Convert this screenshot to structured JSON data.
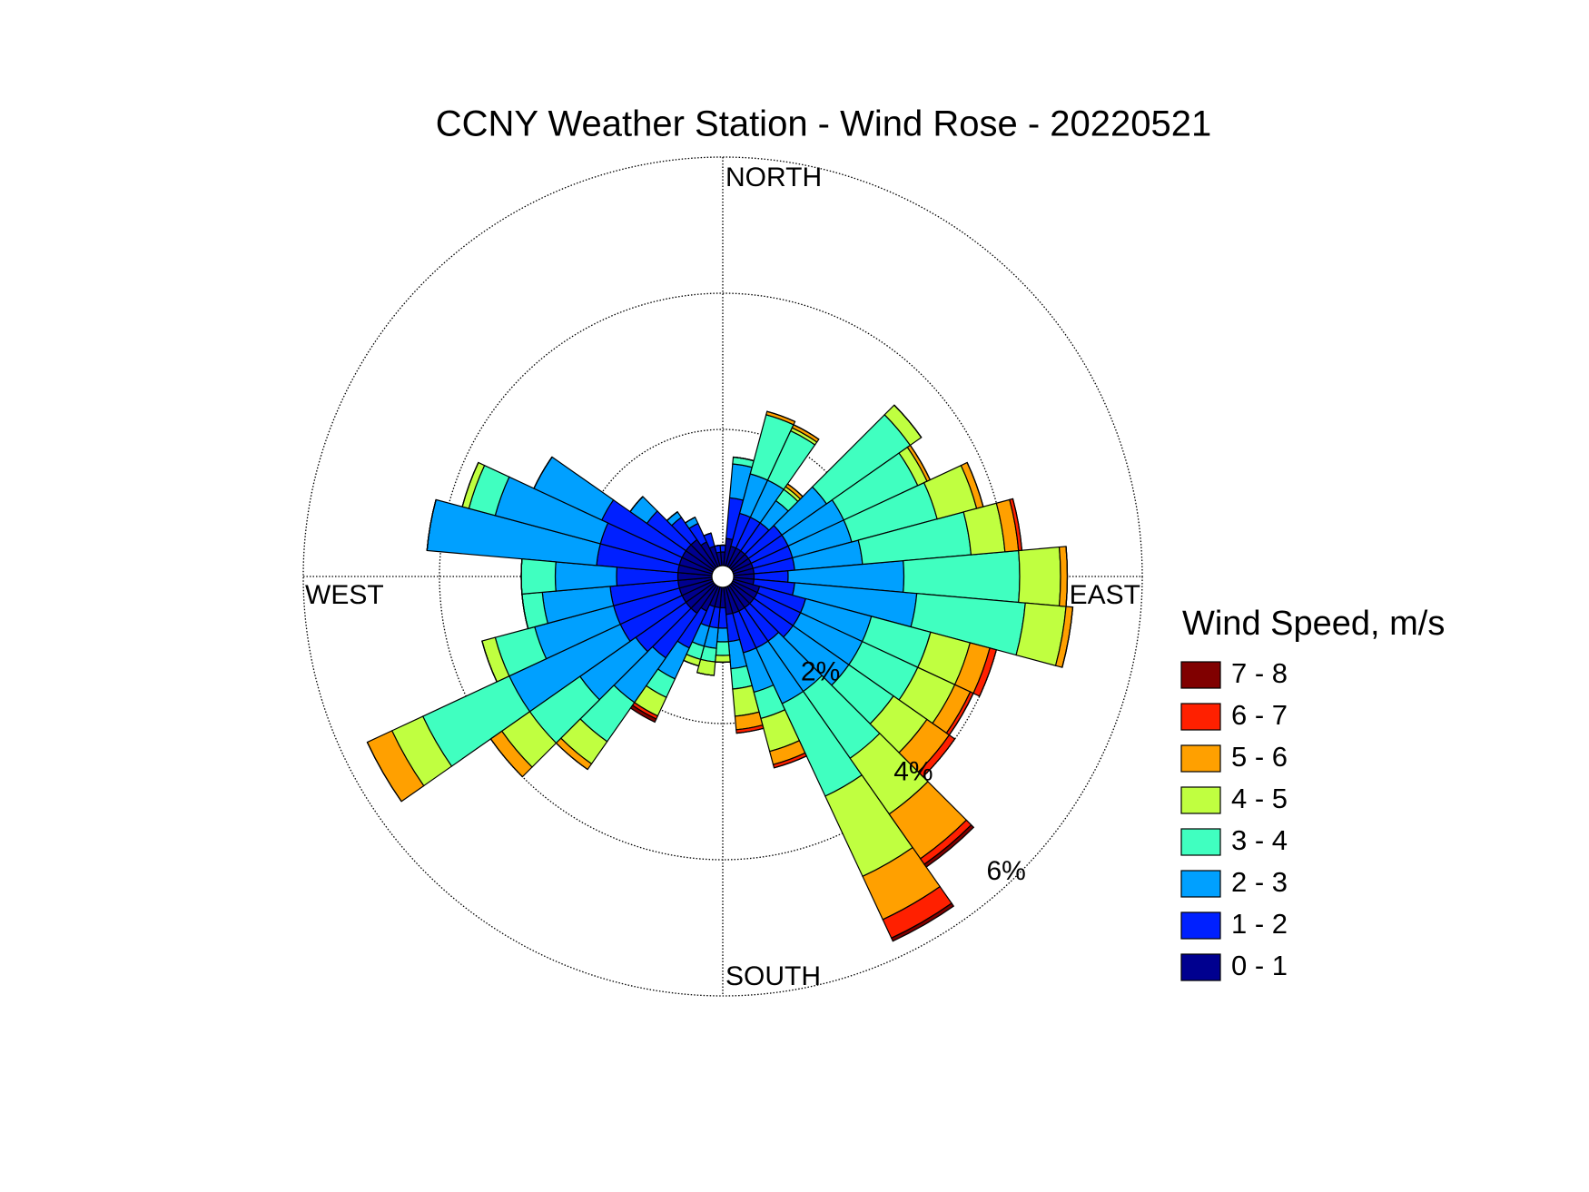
{
  "chart_data": {
    "type": "windrose",
    "title": "CCNY Weather Station - Wind Rose - 20220521",
    "compass_labels": [
      "NORTH",
      "EAST",
      "SOUTH",
      "WEST"
    ],
    "legend_title": "Wind Speed, m/s",
    "directions": [
      0,
      10,
      20,
      30,
      40,
      50,
      60,
      70,
      80,
      90,
      100,
      110,
      120,
      130,
      140,
      150,
      160,
      170,
      180,
      190,
      200,
      210,
      220,
      230,
      240,
      250,
      260,
      270,
      280,
      290,
      300,
      310,
      320,
      330,
      340,
      350
    ],
    "rlim": [
      0,
      6
    ],
    "rticks": [
      {
        "value": 2,
        "label": "2%"
      },
      {
        "value": 4,
        "label": "4%"
      },
      {
        "value": 6,
        "label": "6%"
      }
    ],
    "grid": true,
    "series": [
      {
        "name": "0 - 1",
        "color": "#00008f",
        "values": [
          0.2,
          0.4,
          0.3,
          0.3,
          0.3,
          0.3,
          0.3,
          0.3,
          0.3,
          0.3,
          0.3,
          0.4,
          0.4,
          0.4,
          0.4,
          0.4,
          0.4,
          0.4,
          0.3,
          0.3,
          0.3,
          0.4,
          0.5,
          0.5,
          0.5,
          0.5,
          0.5,
          0.5,
          0.5,
          0.5,
          0.5,
          0.5,
          0.5,
          0.4,
          0.3,
          0.2
        ]
      },
      {
        "name": "1 - 2",
        "color": "#0020ff",
        "values": [
          0.1,
          0.6,
          0.5,
          0.5,
          0.5,
          0.6,
          0.6,
          0.6,
          0.6,
          0.5,
          0.6,
          0.7,
          0.7,
          0.7,
          0.6,
          0.6,
          0.6,
          0.4,
          0.3,
          0.3,
          0.3,
          0.6,
          0.8,
          0.9,
          1.0,
          1.0,
          1.0,
          0.9,
          1.2,
          1.2,
          1.3,
          0.7,
          0.4,
          0.3,
          0.2,
          0.1
        ]
      },
      {
        "name": "2 - 3",
        "color": "#00a0ff",
        "values": [
          0,
          0.5,
          0.6,
          0.6,
          0.4,
          0.8,
          0.9,
          0.9,
          1.0,
          1.7,
          1.8,
          1.0,
          1.0,
          1.0,
          0.9,
          0.9,
          0.6,
          0.4,
          0.2,
          0.3,
          0.3,
          0.5,
          0.8,
          1.0,
          1.8,
          1.2,
          1.0,
          0.9,
          2.5,
          1.6,
          1.1,
          0.3,
          0.1,
          0.1,
          0,
          0
        ]
      },
      {
        "name": "3 - 4",
        "color": "#40ffc0",
        "values": [
          0,
          0.1,
          0.9,
          0.8,
          0.2,
          1.5,
          1.2,
          1.3,
          1.6,
          1.7,
          1.6,
          0.9,
          0.9,
          0.8,
          1.2,
          1.5,
          0.4,
          0.3,
          0.2,
          0.2,
          0.2,
          0.3,
          0.7,
          0.9,
          1.4,
          0.6,
          0.3,
          0.5,
          0,
          0.4,
          0,
          0,
          0,
          0,
          0,
          0
        ]
      },
      {
        "name": "4 - 5",
        "color": "#c0ff40",
        "values": [
          0,
          0,
          0,
          0.05,
          0.05,
          0.2,
          0.15,
          0.6,
          0.5,
          0.6,
          0.6,
          0.6,
          0.6,
          0.6,
          1.0,
          1.3,
          0.5,
          0.4,
          0.1,
          0.2,
          0.1,
          0.3,
          0.4,
          0.5,
          0.5,
          0.2,
          0,
          0,
          0,
          0.1,
          0,
          0,
          0,
          0,
          0,
          0
        ]
      },
      {
        "name": "5 - 6",
        "color": "#ffa000",
        "values": [
          0,
          0,
          0.05,
          0.05,
          0.05,
          0,
          0.05,
          0.1,
          0.2,
          0.1,
          0.1,
          0.3,
          0.25,
          0.4,
          0.8,
          0.7,
          0.2,
          0.2,
          0,
          0,
          0,
          0,
          0.1,
          0.2,
          0.4,
          0,
          0,
          0,
          0,
          0,
          0,
          0,
          0,
          0,
          0,
          0
        ]
      },
      {
        "name": "6 - 7",
        "color": "#ff2000",
        "values": [
          0,
          0,
          0,
          0,
          0,
          0,
          0,
          0,
          0.05,
          0,
          0,
          0.1,
          0.05,
          0.1,
          0.1,
          0.3,
          0.05,
          0.05,
          0,
          0,
          0,
          0.05,
          0,
          0,
          0,
          0,
          0,
          0,
          0,
          0,
          0,
          0,
          0,
          0,
          0,
          0
        ]
      },
      {
        "name": "7 - 8",
        "color": "#800000",
        "values": [
          0,
          0,
          0,
          0,
          0,
          0,
          0,
          0,
          0,
          0,
          0,
          0,
          0,
          0,
          0.05,
          0.05,
          0,
          0,
          0,
          0,
          0,
          0.05,
          0,
          0,
          0,
          0,
          0,
          0,
          0,
          0,
          0,
          0,
          0,
          0,
          0,
          0
        ]
      }
    ]
  }
}
